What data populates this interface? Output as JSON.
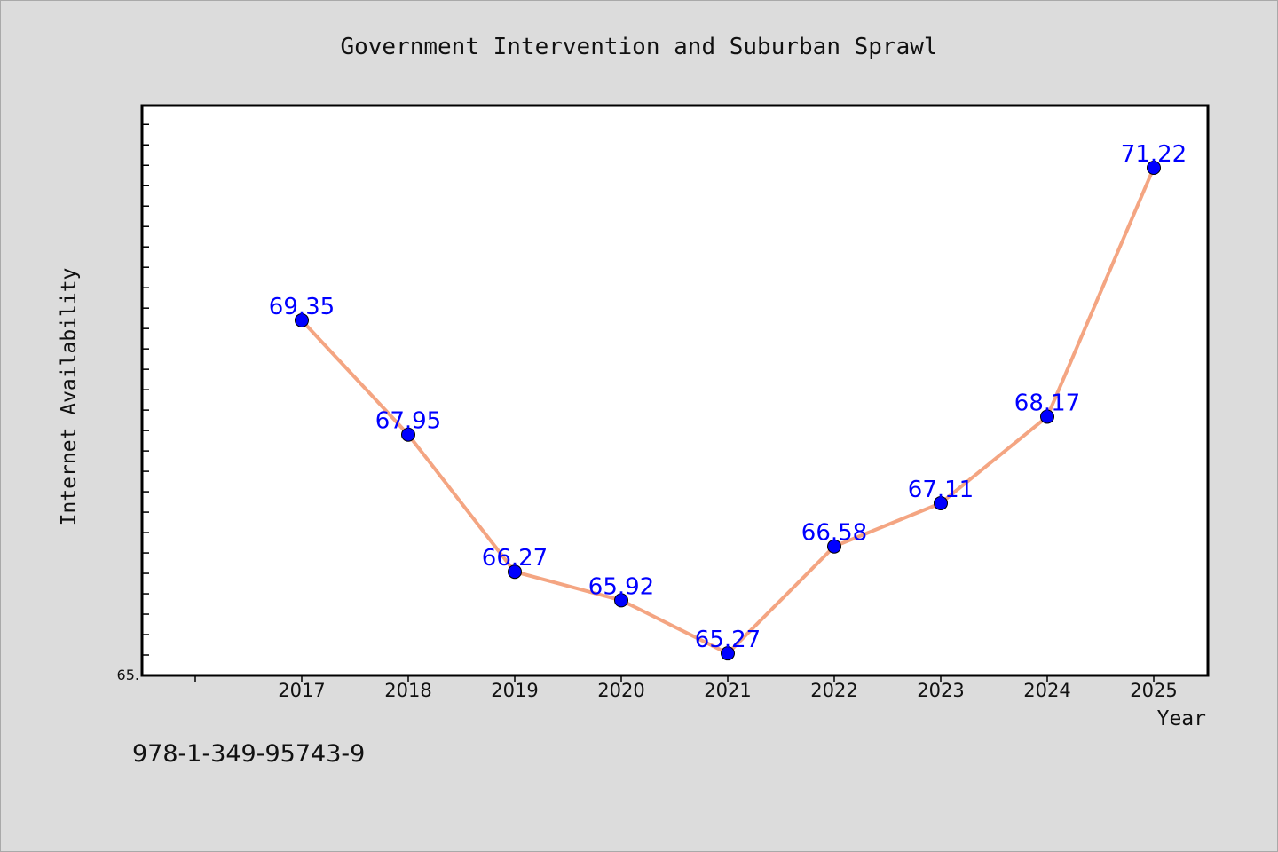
{
  "chart_data": {
    "type": "line",
    "title": "Government Intervention and Suburban Sprawl",
    "xlabel": "Year",
    "ylabel": "Internet Availability",
    "x": [
      "2017",
      "2018",
      "2019",
      "2020",
      "2021",
      "2022",
      "2023",
      "2024",
      "2025"
    ],
    "series": [
      {
        "values": [
          69.35,
          67.95,
          66.27,
          65.92,
          65.27,
          66.58,
          67.11,
          68.17,
          71.22
        ],
        "line_color": "#f4a582",
        "marker_color": "#0000ff",
        "label_color": "#0000ff"
      }
    ],
    "ylim": [
      65.0,
      72.0
    ],
    "ytick_labels": [
      {
        "value": 65.0,
        "text": "65."
      }
    ],
    "grid": false,
    "legend": "none"
  },
  "footer_text": "978-1-349-95743-9"
}
